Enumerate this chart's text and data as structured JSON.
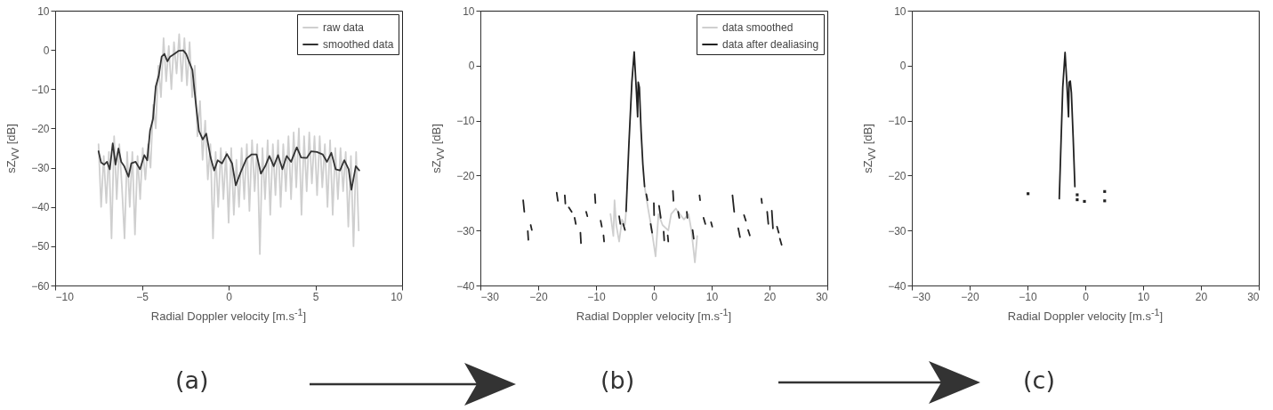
{
  "chart_data": [
    {
      "type": "line",
      "xlabel": "Radial Doppler velocity [m.s$^{-1}$]",
      "ylabel": "sZ$_{VV}$ [dB]",
      "xlim": [
        -10,
        10
      ],
      "xticks": [
        -10,
        -5,
        0,
        5,
        10
      ],
      "ylim": [
        -60,
        10
      ],
      "yticks": [
        -60,
        -50,
        -40,
        -30,
        -20,
        -10,
        0,
        10
      ],
      "legend": "top right",
      "annotations": [
        "(a)"
      ],
      "series": [
        {
          "name": "raw data",
          "color": "#cfcfcf",
          "x": [
            -7.5,
            -7.35,
            -7.2,
            -7.05,
            -6.9,
            -6.75,
            -6.6,
            -6.45,
            -6.3,
            -6.15,
            -6.0,
            -5.85,
            -5.7,
            -5.55,
            -5.4,
            -5.25,
            -5.1,
            -4.95,
            -4.8,
            -4.65,
            -4.5,
            -4.35,
            -4.2,
            -4.05,
            -3.9,
            -3.75,
            -3.6,
            -3.45,
            -3.3,
            -3.15,
            -3.0,
            -2.85,
            -2.7,
            -2.55,
            -2.4,
            -2.25,
            -2.1,
            -1.95,
            -1.8,
            -1.65,
            -1.5,
            -1.35,
            -1.2,
            -1.05,
            -0.9,
            -0.75,
            -0.6,
            -0.45,
            -0.3,
            -0.15,
            0.0,
            0.15,
            0.3,
            0.45,
            0.6,
            0.75,
            0.9,
            1.05,
            1.2,
            1.35,
            1.5,
            1.65,
            1.8,
            1.95,
            2.1,
            2.25,
            2.4,
            2.55,
            2.7,
            2.85,
            3.0,
            3.15,
            3.3,
            3.45,
            3.6,
            3.75,
            3.9,
            4.05,
            4.2,
            4.35,
            4.5,
            4.65,
            4.8,
            4.95,
            5.1,
            5.25,
            5.4,
            5.55,
            5.7,
            5.85,
            6.0,
            6.15,
            6.3,
            6.45,
            6.6,
            6.75,
            6.9,
            7.05,
            7.2,
            7.35,
            7.5
          ],
          "values": [
            -24,
            -40,
            -27,
            -39,
            -26,
            -48,
            -22,
            -38,
            -24,
            -35,
            -48,
            -26,
            -40,
            -26,
            -47,
            -27,
            -38,
            -25,
            -33,
            -24,
            -30,
            -14,
            -20,
            -4,
            -12,
            3,
            -8,
            1,
            -10,
            2,
            -6,
            4,
            -8,
            3,
            -9,
            2,
            -12,
            -4,
            -22,
            -13,
            -28,
            -18,
            -33,
            -24,
            -48,
            -26,
            -40,
            -25,
            -38,
            -26,
            -44,
            -25,
            -42,
            -28,
            -40,
            -25,
            -38,
            -24,
            -41,
            -23,
            -36,
            -24,
            -52,
            -25,
            -38,
            -23,
            -42,
            -24,
            -37,
            -23,
            -40,
            -24,
            -36,
            -22,
            -38,
            -21,
            -35,
            -20,
            -42,
            -22,
            -36,
            -21,
            -34,
            -22,
            -37,
            -22,
            -35,
            -24,
            -40,
            -23,
            -42,
            -25,
            -38,
            -25,
            -36,
            -26,
            -45,
            -27,
            -50,
            -26,
            -46
          ]
        },
        {
          "name": "smoothed data",
          "color": "#333333",
          "x": [
            -7.5,
            -7.35,
            -7.18,
            -7.01,
            -6.85,
            -6.68,
            -6.52,
            -6.35,
            -6.19,
            -6.02,
            -5.77,
            -5.61,
            -5.36,
            -5.11,
            -4.86,
            -4.69,
            -4.53,
            -4.36,
            -4.2,
            -4.03,
            -3.86,
            -3.7,
            -3.53,
            -3.37,
            -3.12,
            -2.87,
            -2.62,
            -2.45,
            -2.29,
            -2.09,
            -1.87,
            -1.71,
            -1.49,
            -1.29,
            -1.04,
            -0.83,
            -0.63,
            -0.38,
            -0.1,
            0.2,
            0.41,
            0.7,
            1.03,
            1.33,
            1.61,
            1.86,
            2.11,
            2.35,
            2.6,
            2.85,
            3.1,
            3.35,
            3.6,
            3.93,
            4.18,
            4.51,
            4.76,
            5.09,
            5.42,
            5.67,
            5.92,
            6.17,
            6.42,
            6.67,
            6.92,
            7.08,
            7.33,
            7.53
          ],
          "values": [
            -25.8,
            -28.7,
            -29.2,
            -28.5,
            -30.4,
            -23.8,
            -29.2,
            -25.1,
            -28.5,
            -29.6,
            -32.3,
            -28.9,
            -28.5,
            -30.4,
            -26.8,
            -28.1,
            -20.6,
            -17.6,
            -9.3,
            -6.6,
            -1.7,
            -1.0,
            -2.9,
            -1.7,
            -1.0,
            -0.2,
            -0.1,
            -1.0,
            -2.9,
            -5.1,
            -14.5,
            -20.6,
            -22.8,
            -21.3,
            -27.4,
            -30.7,
            -28.1,
            -28.9,
            -26.5,
            -28.9,
            -34.5,
            -31.1,
            -27.7,
            -26.6,
            -26.6,
            -31.5,
            -29.6,
            -27.0,
            -29.6,
            -26.8,
            -30.4,
            -27.0,
            -28.5,
            -24.8,
            -27.4,
            -27.5,
            -25.8,
            -26.0,
            -26.6,
            -28.5,
            -26.2,
            -30.4,
            -30.7,
            -28.1,
            -30.4,
            -35.6,
            -29.6,
            -30.7
          ]
        }
      ]
    },
    {
      "type": "line",
      "xlabel": "Radial Doppler velocity [m.s$^{-1}$]",
      "ylabel": "sZ$_{VV}$ [dB]",
      "xlim": [
        -30,
        30
      ],
      "xticks": [
        -30,
        -20,
        -10,
        0,
        10,
        20,
        30
      ],
      "ylim": [
        -40,
        10
      ],
      "yticks": [
        -40,
        -30,
        -20,
        -10,
        0,
        10
      ],
      "legend": "top right",
      "annotations": [
        "(b)"
      ],
      "series": [
        {
          "name": "data smoothed",
          "color": "#cfcfcf",
          "x": [
            -7.5,
            -7.0,
            -6.8,
            -6.5,
            -6.0,
            -5.5,
            -5.0,
            -4.8,
            -4.3,
            -3.8,
            -3.4,
            -3.0,
            -2.8,
            -2.5,
            -2.2,
            -1.6,
            -1.0,
            -0.5,
            0.3,
            0.8,
            1.5,
            2.5,
            3.0,
            3.8,
            4.5,
            5.2,
            6.0,
            6.5,
            7.1,
            7.5
          ],
          "values": [
            -27,
            -31,
            -24.5,
            -29,
            -32,
            -28,
            -29,
            -26.5,
            null,
            null,
            null,
            null,
            null,
            null,
            null,
            -22,
            -26,
            -29,
            -34.7,
            -27,
            -29,
            -30,
            -27,
            -26,
            -27,
            -28,
            -27,
            -30,
            -35.8,
            -31
          ]
        },
        {
          "name": "data after dealiasing",
          "color": "#222222",
          "x": [
            -22.6,
            -22.4,
            null,
            -21.8,
            -21.7,
            null,
            -21.3,
            -21.1,
            null,
            -16.8,
            -16.6,
            null,
            -15.4,
            -15.3,
            null,
            -14.7,
            -14.2,
            null,
            -13.7,
            -13.5,
            null,
            -12.7,
            -12.6,
            null,
            -11.7,
            -11.5,
            null,
            -10.2,
            -10.1,
            null,
            -9.2,
            -9.0,
            null,
            -8.7,
            -8.6,
            null,
            -6.0,
            -5.8,
            null,
            -5.3,
            -5.0,
            null,
            -4.8,
            -4.3,
            -3.8,
            -3.4,
            -3.0,
            -2.8,
            -2.7,
            -2.5,
            -2.2,
            -1.9,
            -1.6,
            null,
            -1.3,
            -1.1,
            null,
            -0.55,
            -0.3,
            null,
            0.0,
            0.05,
            null,
            0.9,
            1.2,
            null,
            1.7,
            1.8,
            null,
            2.4,
            2.5,
            null,
            3.3,
            3.4,
            null,
            4.2,
            4.4,
            null,
            5.7,
            5.8,
            null,
            6.7,
            6.9,
            null,
            7.9,
            8.0,
            null,
            8.6,
            8.9,
            null,
            9.9,
            10.1,
            null,
            13.6,
            13.9,
            null,
            14.6,
            14.9,
            null,
            15.6,
            15.9,
            null,
            16.3,
            16.6,
            null,
            18.6,
            18.7,
            null,
            19.6,
            19.8,
            null,
            20.4,
            20.6,
            null,
            21.3,
            21.6,
            null,
            21.8,
            22.1
          ],
          "values": [
            -24.5,
            -26.6,
            null,
            -30.1,
            -31.7,
            null,
            -29,
            -29.9,
            null,
            -23.1,
            -24.6,
            null,
            -23.6,
            -25.1,
            null,
            -25.8,
            -26.6,
            null,
            -27.7,
            -28.8,
            null,
            -30.4,
            -32.3,
            null,
            -26.6,
            -27.4,
            null,
            -23.4,
            -25,
            null,
            -28.2,
            -29.3,
            null,
            -30.9,
            -32,
            null,
            -27.4,
            -28.8,
            null,
            -28.8,
            -29.9,
            null,
            -26.5,
            -14,
            -3,
            2.5,
            -5,
            -9.3,
            -3,
            -4,
            -12,
            -18,
            -22,
            null,
            -23.4,
            -24.5,
            null,
            -28.8,
            -30.4,
            null,
            -25,
            -27.2,
            null,
            -25.5,
            -27.7,
            null,
            -30.2,
            -31.8,
            null,
            -30.9,
            -32,
            null,
            -22.8,
            -24.6,
            null,
            -26.6,
            -27.7,
            null,
            -26.6,
            -27.7,
            null,
            -29.9,
            -31.5,
            null,
            -23.6,
            -24.5,
            null,
            -27.7,
            -28.8,
            null,
            -28.5,
            -29.3,
            null,
            -23.6,
            -26.6,
            null,
            -29.6,
            -31.2,
            null,
            -27.2,
            -28.2,
            null,
            -29.9,
            -30.9,
            null,
            -24.2,
            -25,
            null,
            -26.6,
            -28.8,
            null,
            -26.4,
            -29.6,
            null,
            -29.3,
            -30.4,
            null,
            -31.5,
            -32.6
          ]
        }
      ]
    },
    {
      "type": "line",
      "xlabel": "Radial Doppler velocity [m.s$^{-1}$]",
      "ylabel": "sZ$_{VV}$ [dB]",
      "xlim": [
        -30,
        30
      ],
      "xticks": [
        -30,
        -20,
        -10,
        0,
        10,
        20,
        30
      ],
      "ylim": [
        -40,
        10
      ],
      "yticks": [
        -40,
        -30,
        -20,
        -10,
        0,
        10
      ],
      "annotations": [
        "(c)"
      ],
      "series": [
        {
          "color": "#222222",
          "x": [
            -4.5,
            -4.2,
            -3.9,
            -3.5,
            -3.2,
            -2.9,
            -2.8,
            -2.6,
            -2.4,
            -2.1,
            -1.8
          ],
          "values": [
            -24.2,
            -14,
            -4,
            2.4,
            -3,
            -9.3,
            -3,
            -2.8,
            -5,
            -13,
            -22
          ]
        },
        {
          "type": "scatter",
          "marker": "square",
          "color": "#222222",
          "x": [
            -9.9,
            -1.4,
            -1.4,
            -0.15,
            3.35,
            3.35
          ],
          "values": [
            -23.3,
            -23.5,
            -24.4,
            -24.7,
            -22.9,
            -24.6
          ]
        }
      ]
    }
  ]
}
